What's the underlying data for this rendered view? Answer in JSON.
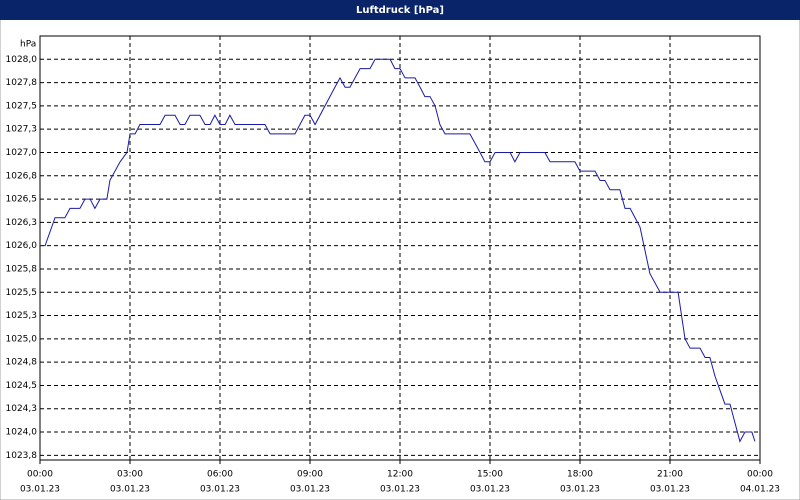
{
  "chart_data": {
    "type": "line",
    "title": "Luftdruck [hPa]",
    "ylabel": "hPa",
    "color": "#1a1aa8",
    "grid": true,
    "x": [
      0,
      0.17,
      0.5,
      0.83,
      1.0,
      1.33,
      1.5,
      1.67,
      1.83,
      2.0,
      2.23,
      2.33,
      2.67,
      2.9,
      3.0,
      3.17,
      3.33,
      4.0,
      4.17,
      4.5,
      4.67,
      4.83,
      5.0,
      5.33,
      5.5,
      5.67,
      5.83,
      6.0,
      6.17,
      6.33,
      6.5,
      7.5,
      7.67,
      8.5,
      8.83,
      9.0,
      9.17,
      9.5,
      9.83,
      10.0,
      10.17,
      10.33,
      10.67,
      11.0,
      11.17,
      11.67,
      11.83,
      12.0,
      12.17,
      12.5,
      12.67,
      12.83,
      13.0,
      13.17,
      13.33,
      13.5,
      14.33,
      14.67,
      14.83,
      15.0,
      15.17,
      15.67,
      15.83,
      16.0,
      16.83,
      17.0,
      17.83,
      18.0,
      18.5,
      18.67,
      18.83,
      19.0,
      19.33,
      19.5,
      19.67,
      20.0,
      20.33,
      20.67,
      21.27,
      21.5,
      21.67,
      22.0,
      22.17,
      22.33,
      22.5,
      22.83,
      23.0,
      23.33,
      23.5,
      23.73,
      23.83
    ],
    "values": [
      1026.0,
      1026.0,
      1026.3,
      1026.3,
      1026.4,
      1026.4,
      1026.5,
      1026.5,
      1026.4,
      1026.5,
      1026.5,
      1026.7,
      1026.9,
      1027.0,
      1027.2,
      1027.2,
      1027.3,
      1027.3,
      1027.4,
      1027.4,
      1027.3,
      1027.3,
      1027.4,
      1027.4,
      1027.3,
      1027.3,
      1027.4,
      1027.3,
      1027.3,
      1027.4,
      1027.3,
      1027.3,
      1027.2,
      1027.2,
      1027.4,
      1027.4,
      1027.3,
      1027.5,
      1027.7,
      1027.8,
      1027.7,
      1027.7,
      1027.9,
      1027.9,
      1028.0,
      1028.0,
      1027.9,
      1027.9,
      1027.8,
      1027.8,
      1027.7,
      1027.6,
      1027.6,
      1027.5,
      1027.3,
      1027.2,
      1027.2,
      1027.0,
      1026.9,
      1026.9,
      1027.0,
      1027.0,
      1026.9,
      1027.0,
      1027.0,
      1026.9,
      1026.9,
      1026.8,
      1026.8,
      1026.7,
      1026.7,
      1026.6,
      1026.6,
      1026.4,
      1026.4,
      1026.2,
      1025.7,
      1025.5,
      1025.5,
      1025.0,
      1024.9,
      1024.9,
      1024.8,
      1024.8,
      1024.6,
      1024.3,
      1024.3,
      1023.9,
      1024.0,
      1024.0,
      1023.9
    ],
    "xlim": [
      0,
      24
    ],
    "ylim": [
      1023.7,
      1028.25
    ],
    "xticks": [
      {
        "value": 0,
        "label": "00:00"
      },
      {
        "value": 3,
        "label": "03:00"
      },
      {
        "value": 6,
        "label": "06:00"
      },
      {
        "value": 9,
        "label": "09:00"
      },
      {
        "value": 12,
        "label": "12:00"
      },
      {
        "value": 15,
        "label": "15:00"
      },
      {
        "value": 18,
        "label": "18:00"
      },
      {
        "value": 21,
        "label": "21:00"
      },
      {
        "value": 24,
        "label": "00:00"
      }
    ],
    "xtick_dates": [
      "03.01.23",
      "03.01.23",
      "03.01.23",
      "03.01.23",
      "03.01.23",
      "03.01.23",
      "03.01.23",
      "03.01.23",
      "04.01.23"
    ],
    "yticks": [
      {
        "value": 1023.75,
        "label": "1023,8"
      },
      {
        "value": 1024.0,
        "label": "1024,0"
      },
      {
        "value": 1024.25,
        "label": "1024,3"
      },
      {
        "value": 1024.5,
        "label": "1024,5"
      },
      {
        "value": 1024.75,
        "label": "1024,8"
      },
      {
        "value": 1025.0,
        "label": "1025,0"
      },
      {
        "value": 1025.25,
        "label": "1025,3"
      },
      {
        "value": 1025.5,
        "label": "1025,5"
      },
      {
        "value": 1025.75,
        "label": "1025,8"
      },
      {
        "value": 1026.0,
        "label": "1026,0"
      },
      {
        "value": 1026.25,
        "label": "1026,3"
      },
      {
        "value": 1026.5,
        "label": "1026,5"
      },
      {
        "value": 1026.75,
        "label": "1026,8"
      },
      {
        "value": 1027.0,
        "label": "1027,0"
      },
      {
        "value": 1027.25,
        "label": "1027,3"
      },
      {
        "value": 1027.5,
        "label": "1027,5"
      },
      {
        "value": 1027.75,
        "label": "1027,8"
      },
      {
        "value": 1028.0,
        "label": "1028,0"
      }
    ]
  }
}
